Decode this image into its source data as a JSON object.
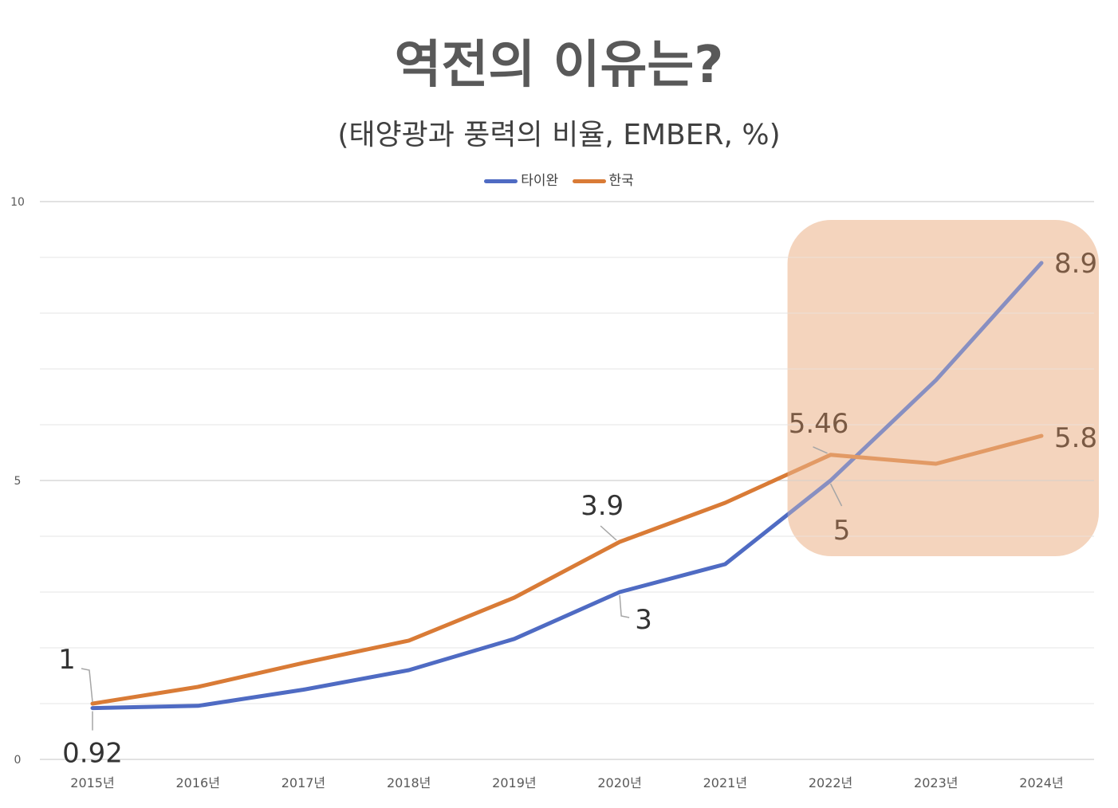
{
  "title": "역전의 이유는?",
  "subtitle": "(태양광과 풍력의 비율, EMBER, %)",
  "chart_data": {
    "type": "line",
    "categories": [
      "2015년",
      "2016년",
      "2017년",
      "2018년",
      "2019년",
      "2020년",
      "2021년",
      "2022년",
      "2023년",
      "2024년"
    ],
    "series": [
      {
        "name": "타이완",
        "color": "#4f6bc3",
        "values": [
          0.92,
          0.96,
          1.25,
          1.6,
          2.16,
          3.0,
          3.5,
          5.0,
          6.8,
          8.9
        ]
      },
      {
        "name": "한국",
        "color": "#d97b36",
        "values": [
          1.0,
          1.3,
          1.73,
          2.13,
          2.9,
          3.9,
          4.6,
          5.46,
          5.3,
          5.8
        ]
      }
    ],
    "ylim": [
      0,
      10
    ],
    "yticks": [
      "0",
      "5",
      "10"
    ],
    "grid": true,
    "legend": "top-center",
    "data_labels": [
      {
        "series": 1,
        "index": 0,
        "text": "1"
      },
      {
        "series": 0,
        "index": 0,
        "text": "0.92"
      },
      {
        "series": 1,
        "index": 5,
        "text": "3.9"
      },
      {
        "series": 0,
        "index": 5,
        "text": "3"
      },
      {
        "series": 1,
        "index": 7,
        "text": "5.46"
      },
      {
        "series": 0,
        "index": 7,
        "text": "5"
      },
      {
        "series": 0,
        "index": 9,
        "text": "8.9"
      },
      {
        "series": 1,
        "index": 9,
        "text": "5.8"
      }
    ],
    "highlight": {
      "from_category": "2022년",
      "to_category": "2024년",
      "color": "#f4d5be"
    }
  }
}
